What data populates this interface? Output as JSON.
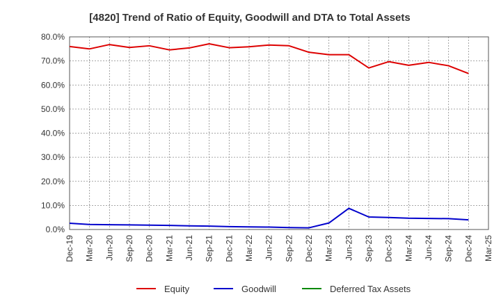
{
  "chart_data": {
    "type": "line",
    "title": "[4820]  Trend of Ratio of Equity, Goodwill and DTA to Total Assets",
    "x": [
      "Dec-19",
      "Mar-20",
      "Jun-20",
      "Sep-20",
      "Dec-20",
      "Mar-21",
      "Jun-21",
      "Sep-21",
      "Dec-21",
      "Mar-22",
      "Jun-22",
      "Sep-22",
      "Dec-22",
      "Mar-23",
      "Jun-23",
      "Sep-23",
      "Dec-23",
      "Mar-24",
      "Jun-24",
      "Sep-24",
      "Dec-24",
      "Mar-25"
    ],
    "y_ticks": [
      "0.0%",
      "10.0%",
      "20.0%",
      "30.0%",
      "40.0%",
      "50.0%",
      "60.0%",
      "70.0%",
      "80.0%"
    ],
    "ylim": [
      0,
      80
    ],
    "grid": true,
    "legend_position": "bottom",
    "series": [
      {
        "name": "Equity",
        "color": "#dd0000",
        "values": [
          76.0,
          75.0,
          76.8,
          75.6,
          76.3,
          74.6,
          75.4,
          77.1,
          75.5,
          75.9,
          76.6,
          76.3,
          73.6,
          72.6,
          72.6,
          67.1,
          69.7,
          68.2,
          69.4,
          68.0,
          64.8,
          null
        ]
      },
      {
        "name": "Goodwill",
        "color": "#0000cc",
        "values": [
          2.6,
          2.1,
          2.0,
          1.9,
          1.8,
          1.7,
          1.5,
          1.4,
          1.2,
          1.1,
          1.0,
          0.8,
          0.7,
          2.7,
          8.8,
          5.2,
          5.0,
          4.7,
          4.6,
          4.5,
          4.0,
          null
        ]
      },
      {
        "name": "Deferred Tax Assets",
        "color": "#008800",
        "values": [
          null,
          null,
          null,
          null,
          null,
          null,
          null,
          null,
          null,
          null,
          null,
          null,
          null,
          null,
          null,
          null,
          null,
          null,
          null,
          null,
          null,
          null
        ]
      }
    ]
  }
}
